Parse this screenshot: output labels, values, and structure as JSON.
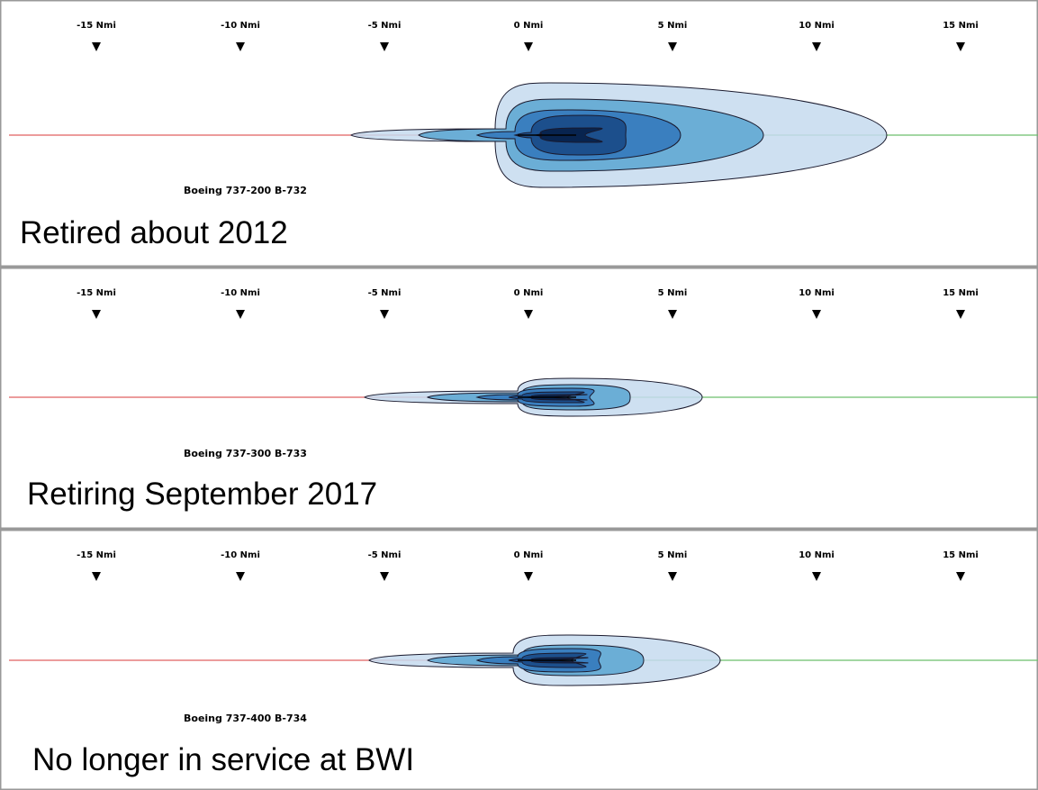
{
  "distance_markers": [
    "-15 Nmi",
    "-10 Nmi",
    "-5 Nmi",
    "0 Nmi",
    "5 Nmi",
    "10 Nmi",
    "15 Nmi"
  ],
  "panels": [
    {
      "aircraft": "Boeing 737-200 B-732",
      "caption": "Retired about 2012"
    },
    {
      "aircraft": "Boeing 737-300 B-733",
      "caption": "Retiring September 2017"
    },
    {
      "aircraft": "Boeing 737-400 B-734",
      "caption": "No longer in service at BWI"
    }
  ]
}
